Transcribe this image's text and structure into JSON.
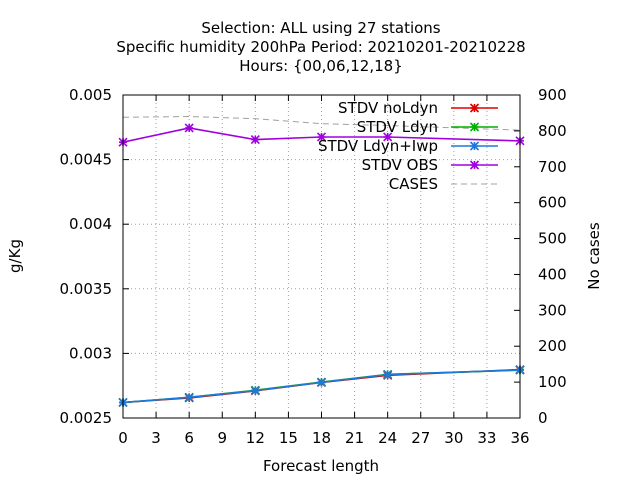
{
  "chart_data": {
    "type": "line",
    "title_lines": [
      "Selection: ALL using    27 stations",
      "Specific humidity 200hPa   Period: 20210201-20210228",
      "Hours: {00,06,12,18}"
    ],
    "xlabel": "Forecast length",
    "ylabel": "g/Kg",
    "y2label": "No cases",
    "xlim": [
      0,
      36
    ],
    "ylim": [
      0.0025,
      0.005
    ],
    "y2lim": [
      0,
      900
    ],
    "xticks": [
      0,
      3,
      6,
      9,
      12,
      15,
      18,
      21,
      24,
      27,
      30,
      33,
      36
    ],
    "yticks": [
      "0.0025",
      "0.003",
      "0.0035",
      "0.004",
      "0.0045",
      "0.005"
    ],
    "y2ticks": [
      0,
      100,
      200,
      300,
      400,
      500,
      600,
      700,
      800,
      900
    ],
    "grid": true,
    "legend_position": "top-right",
    "series": [
      {
        "name": "STDV noLdyn",
        "color": "#e00000",
        "axis": "y",
        "marker": "x",
        "x": [
          0,
          6,
          12,
          18,
          24,
          36
        ],
        "values": [
          0.00262,
          0.002655,
          0.00271,
          0.002775,
          0.00283,
          0.002875
        ]
      },
      {
        "name": "STDV Ldyn",
        "color": "#00b000",
        "axis": "y",
        "marker": "x",
        "x": [
          0,
          6,
          12,
          18,
          24,
          36
        ],
        "values": [
          0.00262,
          0.00266,
          0.002715,
          0.002778,
          0.002838,
          0.00287
        ]
      },
      {
        "name": "STDV Ldyn+Iwp",
        "color": "#1e78dc",
        "axis": "y",
        "marker": "x",
        "x": [
          0,
          6,
          12,
          18,
          24,
          36
        ],
        "values": [
          0.00262,
          0.00266,
          0.002712,
          0.002776,
          0.002836,
          0.002872
        ]
      },
      {
        "name": "STDV OBS",
        "color": "#a000e0",
        "axis": "y",
        "marker": "x",
        "x": [
          0,
          6,
          12,
          18,
          24,
          36
        ],
        "values": [
          0.004635,
          0.004745,
          0.004655,
          0.004675,
          0.004675,
          0.004645
        ]
      },
      {
        "name": "CASES",
        "color": "#a0a0a0",
        "axis": "y2",
        "marker": "none",
        "dashed": true,
        "x": [
          0,
          6,
          12,
          18,
          24,
          36
        ],
        "values": [
          838,
          840,
          834,
          820,
          815,
          802
        ]
      }
    ]
  }
}
